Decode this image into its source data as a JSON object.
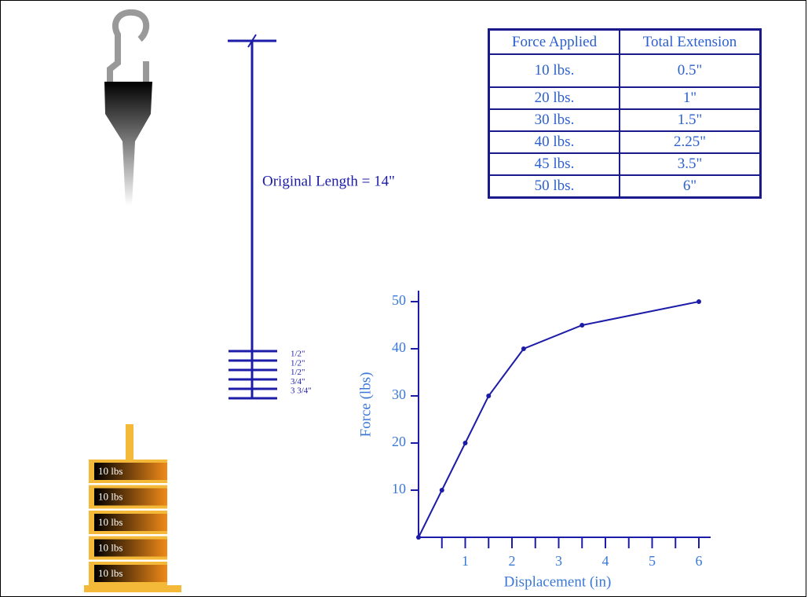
{
  "diagram": {
    "length_label": "Original Length = 14\"",
    "extension_labels": [
      "1/2\"",
      "1/2\"",
      "1/2\"",
      "3/4\"",
      "3 3/4\""
    ],
    "weights": [
      "10 lbs",
      "10 lbs",
      "10 lbs",
      "10 lbs",
      "10 lbs"
    ]
  },
  "table": {
    "header": [
      "Force Applied",
      "Total Extension"
    ],
    "rows": [
      [
        "10 lbs.",
        "0.5\""
      ],
      [
        "20 lbs.",
        "1\""
      ],
      [
        "30 lbs.",
        "1.5\""
      ],
      [
        "40 lbs.",
        "2.25\""
      ],
      [
        "45 lbs.",
        "3.5\""
      ],
      [
        "50 lbs.",
        "6\""
      ]
    ]
  },
  "chart_data": {
    "type": "line",
    "xlabel": "Displacement (in)",
    "ylabel": "Force (lbs)",
    "x": [
      0,
      0.5,
      1,
      1.5,
      2.25,
      3.5,
      6
    ],
    "values": [
      0,
      10,
      20,
      30,
      40,
      45,
      50
    ],
    "color": "#1c1ca8",
    "xlim": [
      0,
      6
    ],
    "ylim": [
      0,
      50
    ],
    "xticks": [
      1,
      2,
      3,
      4,
      5,
      6
    ],
    "xminorticks": [
      0.5,
      1.5,
      2.5,
      3.5,
      4.5,
      5.5
    ],
    "yticks": [
      10,
      20,
      30,
      40,
      50
    ]
  }
}
